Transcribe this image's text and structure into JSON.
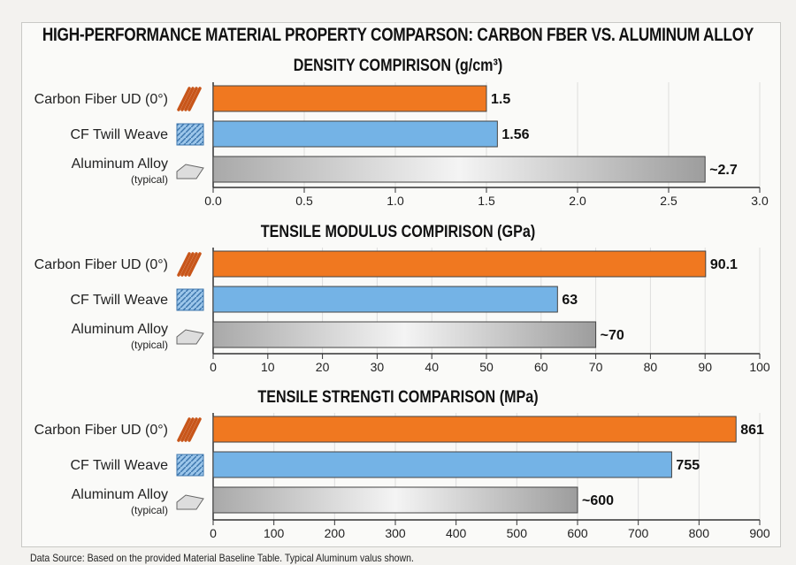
{
  "title": "HIGH-PERFORMANCE MATERIAL PROPERTY COMPARSON: CARBON  FBER VS. ALUMINUM ALLOY",
  "footer": "Data Source: Based on the provided Material Baseline Table. Typical Aluminum valus shown.",
  "colors": {
    "carbon": "#f07820",
    "twill": "#74b3e6",
    "aluminum": "#bdbdbd"
  },
  "chart_data": [
    {
      "type": "bar",
      "orientation": "horizontal",
      "title": "DENSITY COMPIRISON (g/cm³)",
      "categories": [
        "Carbon Fiber UD (0°)",
        "CF Twill Weave",
        "Aluminum Alloy"
      ],
      "category_sublabels": [
        "",
        "",
        "(typical)"
      ],
      "category_icons": [
        "carbon-fiber-strand-icon",
        "twill-weave-icon",
        "aluminum-ingot-icon"
      ],
      "values": [
        1.5,
        1.56,
        2.7
      ],
      "value_labels": [
        "1.5",
        "1.56",
        "~2.7"
      ],
      "xlim": [
        0,
        3.0
      ],
      "ticks": [
        "0.0",
        "0.5",
        "1.0",
        "1.5",
        "2.0",
        "2.5",
        "3.0"
      ],
      "grid": true
    },
    {
      "type": "bar",
      "orientation": "horizontal",
      "title": "TENSILE MODULUS COMPIRISON (GPa)",
      "categories": [
        "Carbon Fiber UD (0°)",
        "CF Twill Weave",
        "Aluminum Alloy"
      ],
      "category_sublabels": [
        "",
        "",
        "(typical)"
      ],
      "category_icons": [
        "carbon-fiber-strand-icon",
        "twill-weave-icon",
        "aluminum-ingot-icon"
      ],
      "values": [
        90.1,
        63,
        70
      ],
      "value_labels": [
        "90.1",
        "63",
        "~70"
      ],
      "xlim": [
        0,
        100
      ],
      "ticks": [
        "0",
        "10",
        "20",
        "30",
        "40",
        "50",
        "60",
        "70",
        "80",
        "90",
        "100"
      ],
      "grid": true
    },
    {
      "type": "bar",
      "orientation": "horizontal",
      "title": "TENSILE STRENGTI COMPARISON (MPa)",
      "categories": [
        "Carbon Fiber UD (0°)",
        "CF Twill Weave",
        "Aluminum Alloy"
      ],
      "category_sublabels": [
        "",
        "",
        "(typical)"
      ],
      "category_icons": [
        "carbon-fiber-strand-icon",
        "twill-weave-icon",
        "aluminum-ingot-icon"
      ],
      "values": [
        861,
        755,
        600
      ],
      "value_labels": [
        "861",
        "755",
        "~600"
      ],
      "xlim": [
        0,
        900
      ],
      "ticks": [
        "0",
        "100",
        "200",
        "300",
        "400",
        "500",
        "600",
        "700",
        "800",
        "900"
      ],
      "grid": true
    }
  ]
}
